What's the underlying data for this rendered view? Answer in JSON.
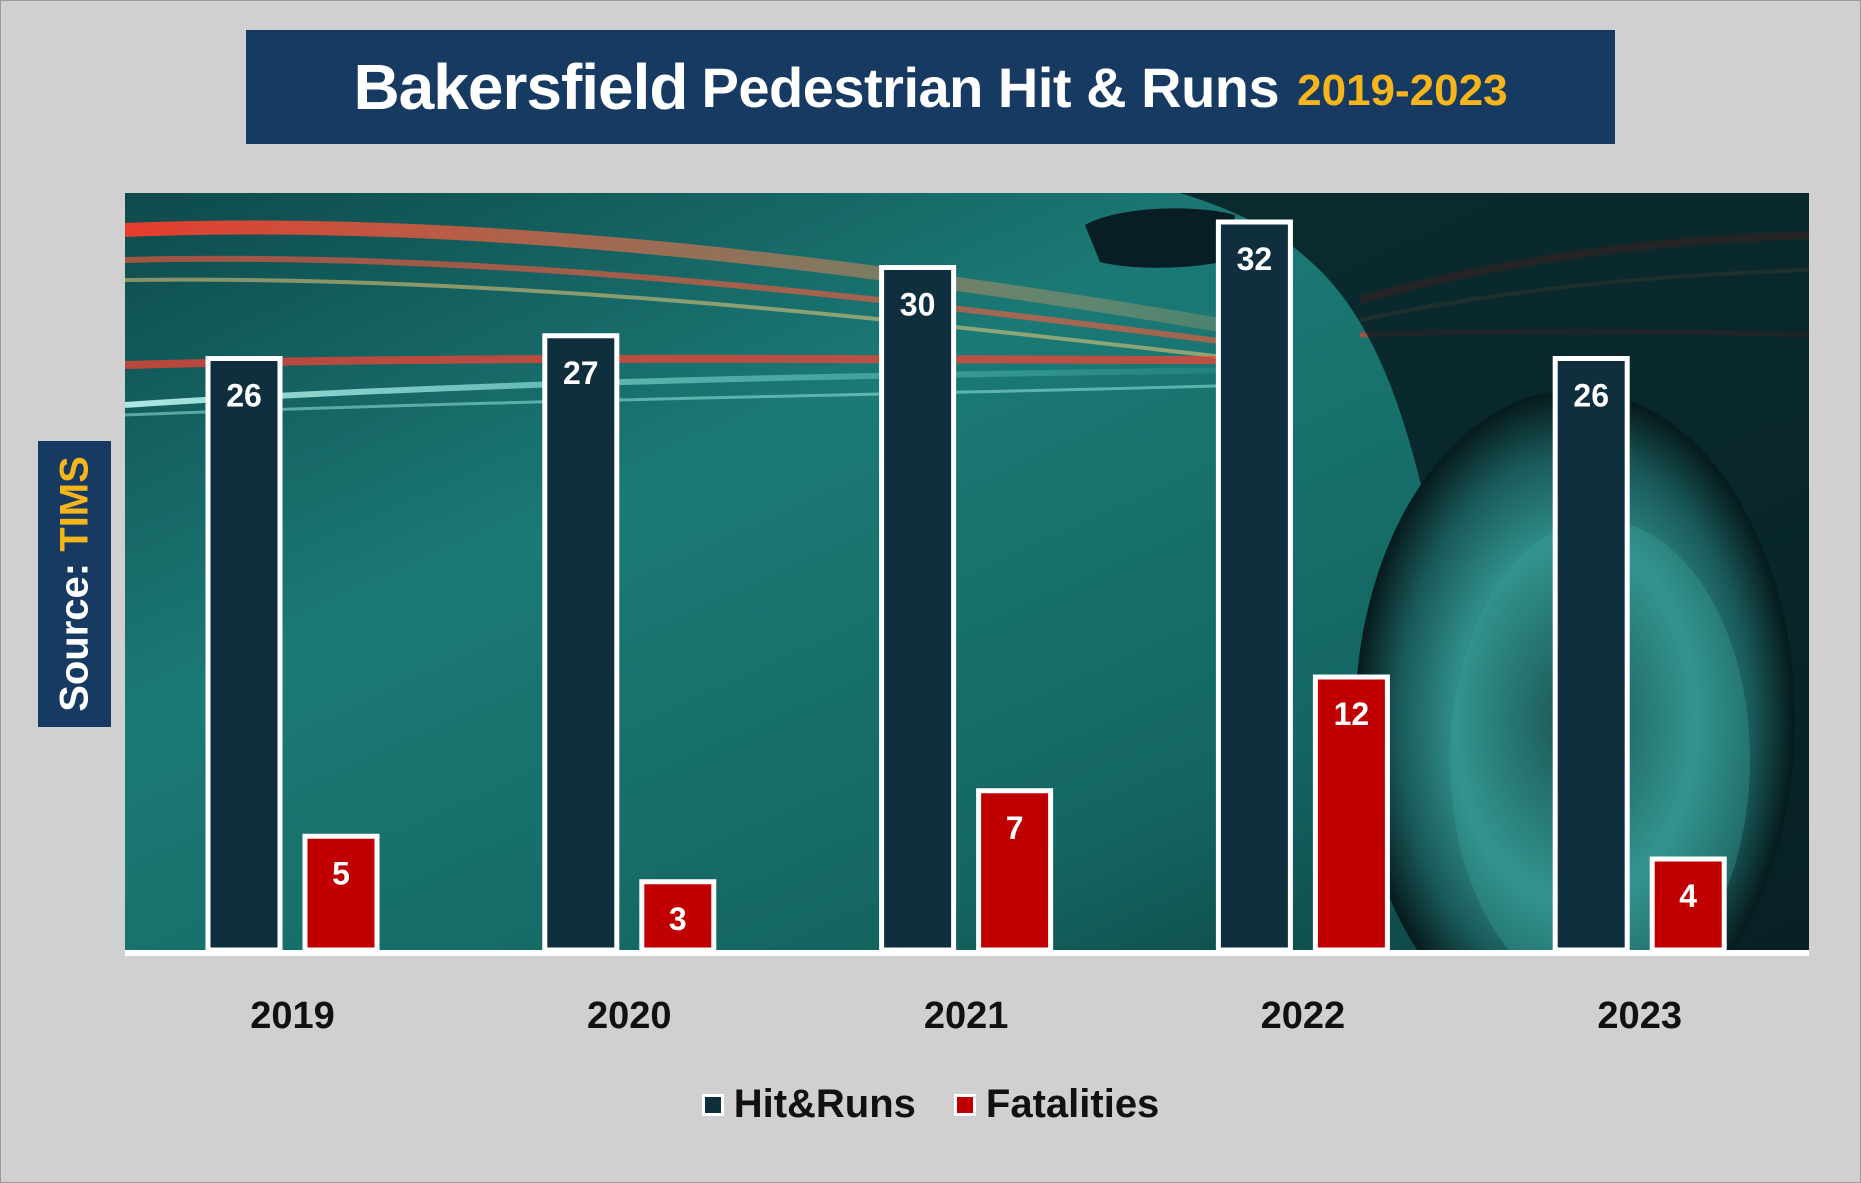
{
  "header": {
    "title_city": "Bakersfield",
    "title_rest": "Pedestrian Hit & Runs",
    "title_years": "2019-2023"
  },
  "source": {
    "label": "Source:",
    "value": "TIMS"
  },
  "colors": {
    "hit_runs": "#0f2f3e",
    "fatalities": "#c00000",
    "title_bg": "#173a62",
    "accent": "#f5b51b"
  },
  "chart_data": {
    "type": "bar",
    "categories": [
      "2019",
      "2020",
      "2021",
      "2022",
      "2023"
    ],
    "series": [
      {
        "name": "Hit&Runs",
        "values": [
          26,
          27,
          30,
          32,
          26
        ]
      },
      {
        "name": "Fatalities",
        "values": [
          5,
          3,
          7,
          12,
          4
        ]
      }
    ],
    "data_labels": true,
    "legend_position": "bottom",
    "grid": false
  }
}
